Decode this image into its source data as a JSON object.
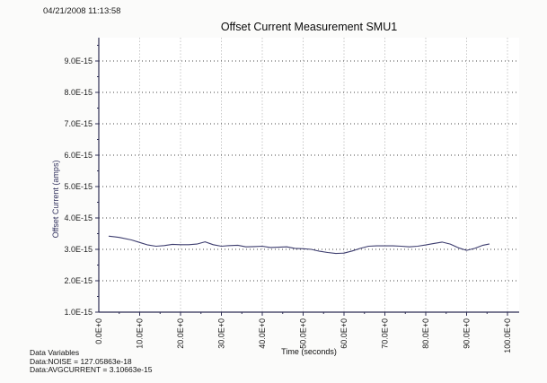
{
  "header": {
    "timestamp": "04/21/2008 11:13:58"
  },
  "chart_data": {
    "type": "line",
    "title": "Offset Current Measurement SMU1",
    "xlabel": "Time (seconds)",
    "ylabel": "Offset Current (amps)",
    "x_tick_labels": [
      "0.0E+0",
      "10.0E+0",
      "20.0E+0",
      "30.0E+0",
      "40.0E+0",
      "50.0E+0",
      "60.0E+0",
      "70.0E+0",
      "80.0E+0",
      "90.0E+0",
      "100.0E+0"
    ],
    "x_tick_values": [
      0,
      10,
      20,
      30,
      40,
      50,
      60,
      70,
      80,
      90,
      100
    ],
    "x_minor_step": 5,
    "y_tick_labels": [
      "1.0E-15",
      "2.0E-15",
      "3.0E-15",
      "4.0E-15",
      "5.0E-15",
      "6.0E-15",
      "7.0E-15",
      "8.0E-15",
      "9.0E-15"
    ],
    "y_tick_values": [
      1,
      2,
      3,
      4,
      5,
      6,
      7,
      8,
      9
    ],
    "y_minor_step": 0.5,
    "y_unit_scale": "1e-15",
    "xlim": [
      0,
      102.8
    ],
    "ylim": [
      1.0,
      9.75
    ],
    "grid": true,
    "legend": "none",
    "series": [
      {
        "name": "offset-current",
        "color": "#3c3c6e",
        "points": [
          [
            2.5,
            3.42
          ],
          [
            5,
            3.38
          ],
          [
            8,
            3.3
          ],
          [
            10,
            3.22
          ],
          [
            12,
            3.14
          ],
          [
            14,
            3.1
          ],
          [
            16,
            3.12
          ],
          [
            18,
            3.16
          ],
          [
            20,
            3.15
          ],
          [
            22,
            3.15
          ],
          [
            24,
            3.17
          ],
          [
            26,
            3.24
          ],
          [
            28,
            3.15
          ],
          [
            30,
            3.1
          ],
          [
            32,
            3.12
          ],
          [
            34,
            3.13
          ],
          [
            36,
            3.08
          ],
          [
            38,
            3.09
          ],
          [
            40,
            3.1
          ],
          [
            42,
            3.06
          ],
          [
            44,
            3.07
          ],
          [
            46,
            3.08
          ],
          [
            48,
            3.03
          ],
          [
            50,
            3.02
          ],
          [
            52,
            3.0
          ],
          [
            54,
            2.94
          ],
          [
            56,
            2.9
          ],
          [
            58,
            2.87
          ],
          [
            60,
            2.88
          ],
          [
            62,
            2.95
          ],
          [
            64,
            3.03
          ],
          [
            66,
            3.1
          ],
          [
            68,
            3.11
          ],
          [
            70,
            3.11
          ],
          [
            72,
            3.11
          ],
          [
            74,
            3.1
          ],
          [
            76,
            3.08
          ],
          [
            78,
            3.1
          ],
          [
            80,
            3.14
          ],
          [
            82,
            3.19
          ],
          [
            84,
            3.23
          ],
          [
            86,
            3.17
          ],
          [
            88,
            3.05
          ],
          [
            90,
            2.97
          ],
          [
            92,
            3.03
          ],
          [
            94,
            3.13
          ],
          [
            95.5,
            3.17
          ]
        ]
      }
    ]
  },
  "footer": {
    "title": "Data Variables",
    "lines": [
      "Data:NOISE = 127.05863e-18",
      "Data:AVGCURRENT = 3.10663e-15"
    ]
  },
  "colors": {
    "axis": "#2e2e54",
    "h_grid": "#454545",
    "v_grid": "#c8c8c8",
    "curve": "#3c3c6e",
    "plot_bg": "#ffffff",
    "background": "#fbfbfa"
  }
}
